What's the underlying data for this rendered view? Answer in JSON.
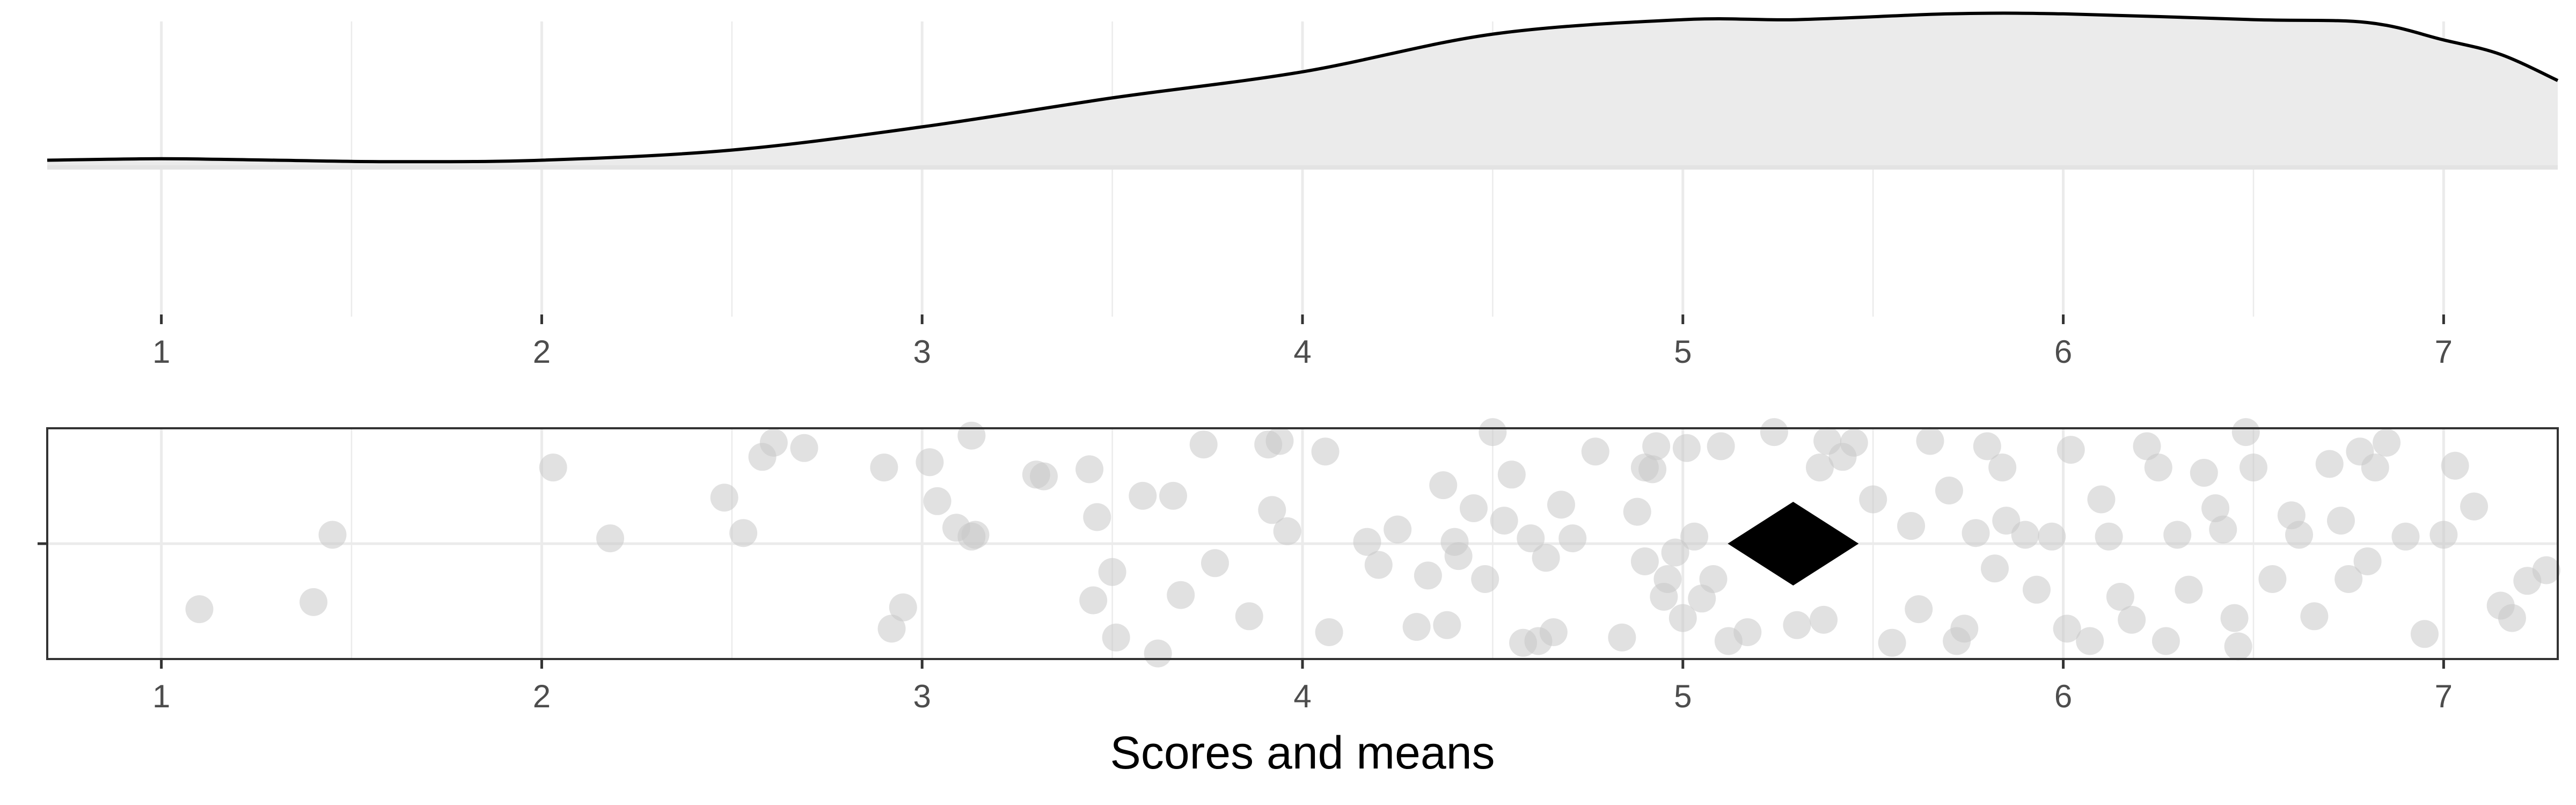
{
  "chart_data": [
    {
      "type": "area",
      "panel": "density",
      "xlim": [
        0.7,
        7.3
      ],
      "x_ticks": [
        1,
        2,
        3,
        4,
        5,
        6,
        7
      ],
      "grid": true,
      "legend": "none",
      "density_curve": {
        "x": [
          0.7,
          1.0,
          1.3,
          1.6,
          2.0,
          2.5,
          3.0,
          3.5,
          4.0,
          4.5,
          5.0,
          5.3,
          5.7,
          6.0,
          6.5,
          6.8,
          7.0,
          7.15,
          7.3
        ],
        "y": [
          0.025,
          0.03,
          0.025,
          0.02,
          0.025,
          0.06,
          0.14,
          0.24,
          0.33,
          0.46,
          0.51,
          0.51,
          0.53,
          0.53,
          0.51,
          0.5,
          0.44,
          0.39,
          0.3
        ]
      },
      "fill_color": "#ebebeb",
      "line_color": "#000000"
    },
    {
      "type": "scatter",
      "panel": "jittered scores with mean",
      "xlim": [
        0.7,
        7.3
      ],
      "x_ticks": [
        1,
        2,
        3,
        4,
        5,
        6,
        7
      ],
      "xlabel": "Scores and means",
      "grid": true,
      "legend": "none",
      "point_color": "#c8c8c8",
      "mean": {
        "x": 5.29,
        "shape": "diamond",
        "color": "#000000"
      },
      "points": [
        [
          1.1,
          -0.37
        ],
        [
          1.4,
          -0.33
        ],
        [
          1.45,
          0.05
        ],
        [
          2.03,
          0.43
        ],
        [
          2.18,
          0.03
        ],
        [
          2.48,
          0.26
        ],
        [
          2.53,
          0.06
        ],
        [
          2.58,
          0.49
        ],
        [
          2.61,
          0.57
        ],
        [
          2.69,
          0.54
        ],
        [
          2.9,
          0.43
        ],
        [
          2.92,
          -0.48
        ],
        [
          2.95,
          -0.36
        ],
        [
          3.02,
          0.46
        ],
        [
          3.04,
          0.24
        ],
        [
          3.09,
          0.09
        ],
        [
          3.13,
          0.04
        ],
        [
          3.14,
          0.05
        ],
        [
          3.13,
          0.61
        ],
        [
          3.3,
          0.39
        ],
        [
          3.32,
          0.38
        ],
        [
          3.44,
          0.42
        ],
        [
          3.45,
          -0.32
        ],
        [
          3.46,
          0.15
        ],
        [
          3.5,
          -0.16
        ],
        [
          3.51,
          -0.53
        ],
        [
          3.58,
          0.27
        ],
        [
          3.62,
          -0.62
        ],
        [
          3.66,
          0.27
        ],
        [
          3.68,
          -0.29
        ],
        [
          3.74,
          0.56
        ],
        [
          3.77,
          -0.11
        ],
        [
          3.86,
          -0.41
        ],
        [
          3.91,
          0.56
        ],
        [
          3.92,
          0.19
        ],
        [
          3.94,
          0.58
        ],
        [
          3.96,
          0.07
        ],
        [
          4.06,
          0.52
        ],
        [
          4.07,
          -0.5
        ],
        [
          4.17,
          0.01
        ],
        [
          4.2,
          -0.12
        ],
        [
          4.25,
          0.08
        ],
        [
          4.3,
          -0.47
        ],
        [
          4.33,
          -0.18
        ],
        [
          4.37,
          0.33
        ],
        [
          4.38,
          -0.46
        ],
        [
          4.4,
          0.01
        ],
        [
          4.41,
          -0.07
        ],
        [
          4.45,
          0.2
        ],
        [
          4.48,
          -0.2
        ],
        [
          4.5,
          0.63
        ],
        [
          4.53,
          0.13
        ],
        [
          4.55,
          0.39
        ],
        [
          4.58,
          -0.56
        ],
        [
          4.6,
          0.03
        ],
        [
          4.62,
          -0.55
        ],
        [
          4.64,
          -0.08
        ],
        [
          4.66,
          -0.5
        ],
        [
          4.68,
          0.22
        ],
        [
          4.71,
          0.03
        ],
        [
          4.77,
          0.52
        ],
        [
          4.84,
          -0.53
        ],
        [
          4.88,
          0.18
        ],
        [
          4.9,
          -0.1
        ],
        [
          4.9,
          0.43
        ],
        [
          4.92,
          0.42
        ],
        [
          4.93,
          0.55
        ],
        [
          4.95,
          -0.3
        ],
        [
          4.96,
          -0.2
        ],
        [
          4.98,
          -0.05
        ],
        [
          5.0,
          -0.42
        ],
        [
          5.01,
          0.54
        ],
        [
          5.03,
          0.04
        ],
        [
          5.05,
          -0.31
        ],
        [
          5.08,
          -0.2
        ],
        [
          5.1,
          0.55
        ],
        [
          5.12,
          -0.55
        ],
        [
          5.17,
          -0.5
        ],
        [
          5.24,
          0.63
        ],
        [
          5.3,
          -0.46
        ],
        [
          5.36,
          0.43
        ],
        [
          5.37,
          -0.43
        ],
        [
          5.38,
          0.58
        ],
        [
          5.42,
          0.49
        ],
        [
          5.45,
          0.57
        ],
        [
          5.5,
          0.25
        ],
        [
          5.55,
          -0.56
        ],
        [
          5.6,
          0.1
        ],
        [
          5.62,
          -0.37
        ],
        [
          5.65,
          0.58
        ],
        [
          5.7,
          0.3
        ],
        [
          5.72,
          -0.55
        ],
        [
          5.74,
          -0.48
        ],
        [
          5.77,
          0.06
        ],
        [
          5.8,
          0.55
        ],
        [
          5.82,
          -0.14
        ],
        [
          5.84,
          0.43
        ],
        [
          5.85,
          0.13
        ],
        [
          5.9,
          0.05
        ],
        [
          5.93,
          -0.26
        ],
        [
          5.97,
          0.04
        ],
        [
          6.01,
          -0.48
        ],
        [
          6.02,
          0.53
        ],
        [
          6.07,
          -0.55
        ],
        [
          6.1,
          0.25
        ],
        [
          6.12,
          0.04
        ],
        [
          6.15,
          -0.3
        ],
        [
          6.18,
          -0.43
        ],
        [
          6.22,
          0.55
        ],
        [
          6.25,
          0.43
        ],
        [
          6.27,
          -0.55
        ],
        [
          6.3,
          0.05
        ],
        [
          6.33,
          -0.26
        ],
        [
          6.37,
          0.4
        ],
        [
          6.4,
          0.2
        ],
        [
          6.42,
          0.08
        ],
        [
          6.45,
          -0.42
        ],
        [
          6.46,
          -0.58
        ],
        [
          6.48,
          0.63
        ],
        [
          6.5,
          0.43
        ],
        [
          6.55,
          -0.2
        ],
        [
          6.6,
          0.16
        ],
        [
          6.62,
          0.05
        ],
        [
          6.66,
          -0.41
        ],
        [
          6.7,
          0.45
        ],
        [
          6.73,
          0.13
        ],
        [
          6.75,
          -0.2
        ],
        [
          6.78,
          0.52
        ],
        [
          6.8,
          -0.1
        ],
        [
          6.82,
          0.43
        ],
        [
          6.85,
          0.57
        ],
        [
          6.9,
          0.04
        ],
        [
          6.95,
          -0.51
        ],
        [
          7.0,
          0.05
        ],
        [
          7.03,
          0.44
        ],
        [
          7.08,
          0.21
        ],
        [
          7.15,
          -0.35
        ],
        [
          7.18,
          -0.42
        ],
        [
          7.22,
          -0.21
        ],
        [
          7.27,
          -0.15
        ]
      ]
    }
  ],
  "axes": {
    "top_ticks": [
      "1",
      "2",
      "3",
      "4",
      "5",
      "6",
      "7"
    ],
    "bottom_ticks": [
      "1",
      "2",
      "3",
      "4",
      "5",
      "6",
      "7"
    ],
    "xlabel": "Scores and means"
  }
}
